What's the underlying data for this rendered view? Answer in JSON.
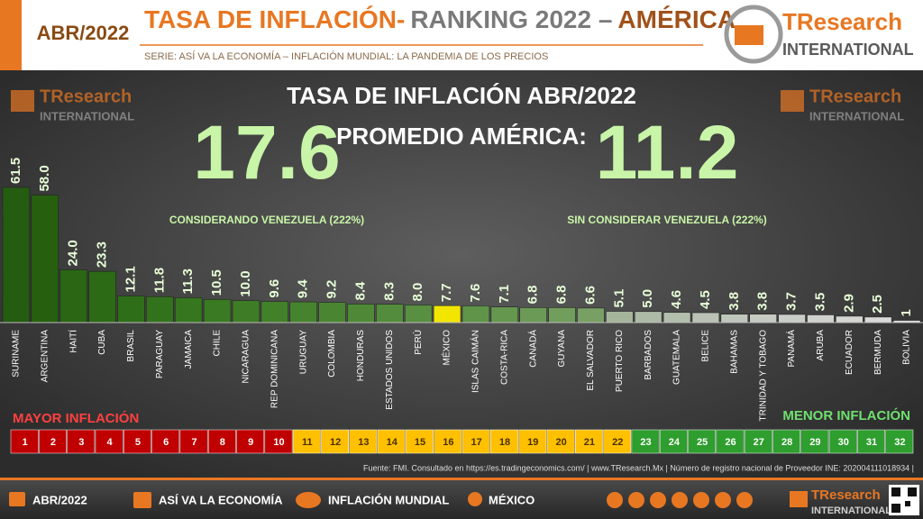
{
  "header": {
    "date": "ABR/2022",
    "title_parts": [
      "TASA DE INFLACIÓN-",
      "RANKING 2022 –",
      "AMÉRICA"
    ],
    "subtitle": "SERIE: ASÍ VA LA ECONOMÍA – INFLACIÓN MUNDIAL: LA PANDEMIA DE LOS PRECIOS",
    "logo_name": "TResearch",
    "logo_sub": "INTERNATIONAL"
  },
  "chart_data": {
    "type": "bar",
    "title": "TASA DE INFLACIÓN ABR/2022",
    "average_label": "PROMEDIO AMÉRICA:",
    "average_with": 17.6,
    "average_with_note": "CONSIDERANDO VENEZUELA (222%)",
    "average_without": 11.2,
    "average_without_note": "SIN CONSIDERAR VENEZUELA (222%)",
    "categories": [
      "SURINAME",
      "ARGENTINA",
      "HAITÍ",
      "CUBA",
      "BRASIL",
      "PARAGUAY",
      "JAMAICA",
      "CHILE",
      "NICARAGUA",
      "REP DOMINICANA",
      "URUGUAY",
      "COLOMBIA",
      "HONDURAS",
      "ESTADOS UNIDOS",
      "PERÚ",
      "MÉXICO",
      "ISLAS CAIMÁN",
      "COSTA-RICA",
      "CANADÁ",
      "GUYANA",
      "EL SALVADOR",
      "PUERTO RICO",
      "BARBADOS",
      "GUATEMALA",
      "BELICE",
      "BAHAMAS",
      "TRINIDAD Y TOBAGO",
      "PANAMÁ",
      "ARUBA",
      "ECUADOR",
      "BERMUDA",
      "BOLIVIA"
    ],
    "values": [
      61.5,
      58.0,
      24.0,
      23.3,
      12.1,
      11.8,
      11.3,
      10.5,
      10.0,
      9.6,
      9.4,
      9.2,
      8.4,
      8.3,
      8.0,
      7.7,
      7.6,
      7.1,
      6.8,
      6.8,
      6.6,
      5.1,
      5.0,
      4.6,
      4.5,
      3.8,
      3.8,
      3.7,
      3.5,
      2.9,
      2.5,
      1
    ],
    "value_labels": [
      "61.5",
      "58.0",
      "24.0",
      "23.3",
      "12.1",
      "11.8",
      "11.3",
      "10.5",
      "10.0",
      "9.6",
      "9.4",
      "9.2",
      "8.4",
      "8.3",
      "8.0",
      "7.7",
      "7.6",
      "7.1",
      "6.8",
      "6.8",
      "6.6",
      "5.1",
      "5.0",
      "4.6",
      "4.5",
      "3.8",
      "3.8",
      "3.7",
      "3.5",
      "2.9",
      "2.5",
      "1"
    ],
    "colors": [
      "#245c12",
      "#26600f",
      "#2a6614",
      "#2c6a16",
      "#2f6e18",
      "#33721c",
      "#36761f",
      "#3a7a22",
      "#3e7d26",
      "#42802a",
      "#46832e",
      "#4a8632",
      "#4f8937",
      "#538c3c",
      "#588f41",
      "#f2e600",
      "#5f9449",
      "#65974f",
      "#6b9a56",
      "#719d5d",
      "#78a065",
      "#a5b59c",
      "#adbaa6",
      "#b3bead",
      "#b9c2b4",
      "#bfc6bb",
      "#c5cac2",
      "#cacec8",
      "#cfd2cd",
      "#d4d6d2",
      "#d9dad8",
      "#dedede"
    ]
  },
  "ranking": {
    "high_label": "MAYOR INFLACIÓN",
    "low_label": "MENOR INFLACIÓN",
    "groups": [
      {
        "color": "#c00000",
        "text_color": "#ffffff",
        "ranks": [
          1,
          2,
          3,
          4,
          5,
          6,
          7,
          8,
          9,
          10
        ]
      },
      {
        "color": "#ffc000",
        "text_color": "#4a3000",
        "ranks": [
          11,
          12,
          13,
          14,
          15,
          16,
          17,
          18,
          19,
          20,
          21,
          22
        ]
      },
      {
        "color": "#2e9e2e",
        "text_color": "#ffffff",
        "ranks": [
          23,
          24,
          25,
          26,
          27,
          28,
          29,
          30,
          31,
          32
        ]
      }
    ]
  },
  "footer": {
    "source": "Fuente: FMI. Consultado en https://es.tradingeconomics.com/ | www.TResearch.Mx | Número de registro nacional de Proveedor INE: 202004111018934 |",
    "items": [
      "ABR/2022",
      "ASÍ VA LA ECONOMÍA",
      "INFLACIÓN MUNDIAL",
      "MÉXICO"
    ]
  }
}
